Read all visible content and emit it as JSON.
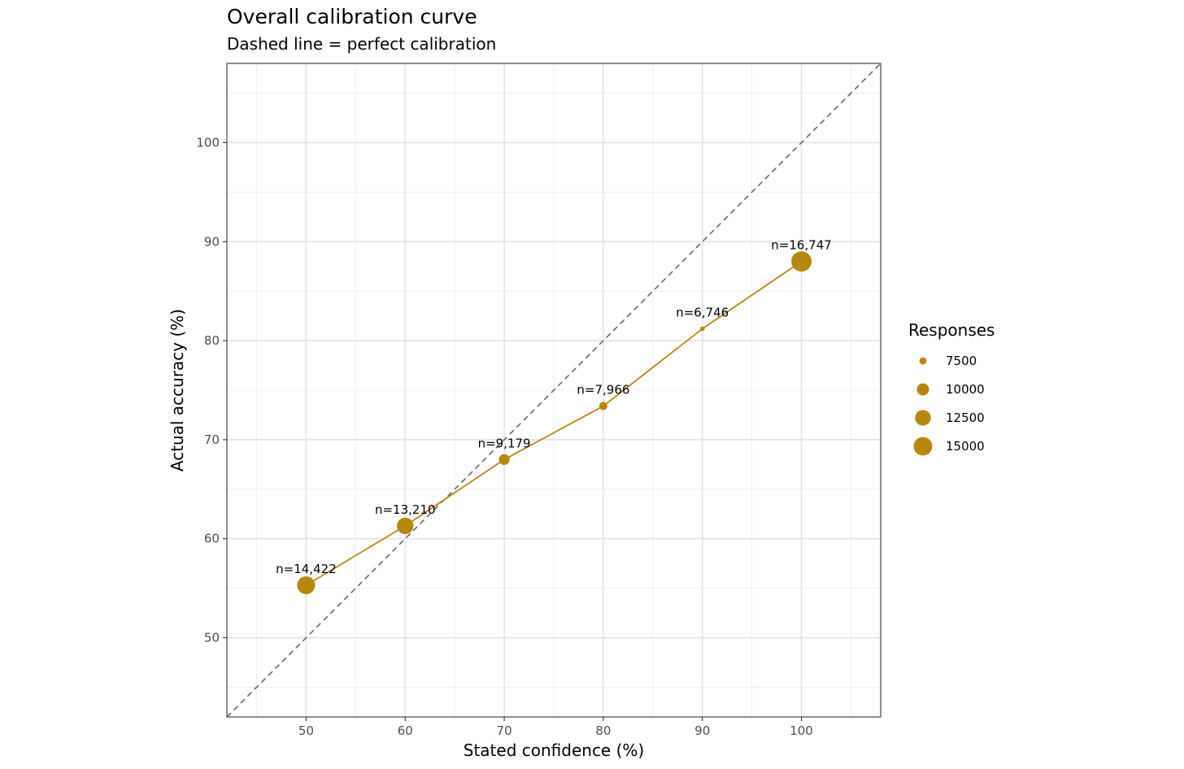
{
  "chart_data": {
    "type": "scatter",
    "title": "Overall calibration curve",
    "subtitle": "Dashed line = perfect calibration",
    "xlabel": "Stated confidence (%)",
    "ylabel": "Actual accuracy (%)",
    "xlim": [
      42,
      108
    ],
    "ylim": [
      42,
      108
    ],
    "x_ticks": [
      50,
      60,
      70,
      80,
      90,
      100
    ],
    "y_ticks": [
      50,
      60,
      70,
      80,
      90,
      100
    ],
    "grid": true,
    "reference_line": {
      "style": "dashed",
      "slope": 1,
      "intercept": 0,
      "color": "#666666"
    },
    "series": [
      {
        "color": "#b8860b",
        "points": [
          {
            "x": 50,
            "y": 55.3,
            "n": 14422,
            "label": "n=14,422"
          },
          {
            "x": 60,
            "y": 61.3,
            "n": 13210,
            "label": "n=13,210"
          },
          {
            "x": 70,
            "y": 68.0,
            "n": 9179,
            "label": "n=9,179"
          },
          {
            "x": 80,
            "y": 73.4,
            "n": 7966,
            "label": "n=7,966"
          },
          {
            "x": 90,
            "y": 81.2,
            "n": 6746,
            "label": "n=6,746"
          },
          {
            "x": 100,
            "y": 88.0,
            "n": 16747,
            "label": "n=16,747"
          }
        ]
      }
    ],
    "legend": {
      "title": "Responses",
      "placement": "right",
      "entries": [
        {
          "value": 7500,
          "label": "7500"
        },
        {
          "value": 10000,
          "label": "10000"
        },
        {
          "value": 12500,
          "label": "12500"
        },
        {
          "value": 15000,
          "label": "15000"
        }
      ]
    }
  }
}
